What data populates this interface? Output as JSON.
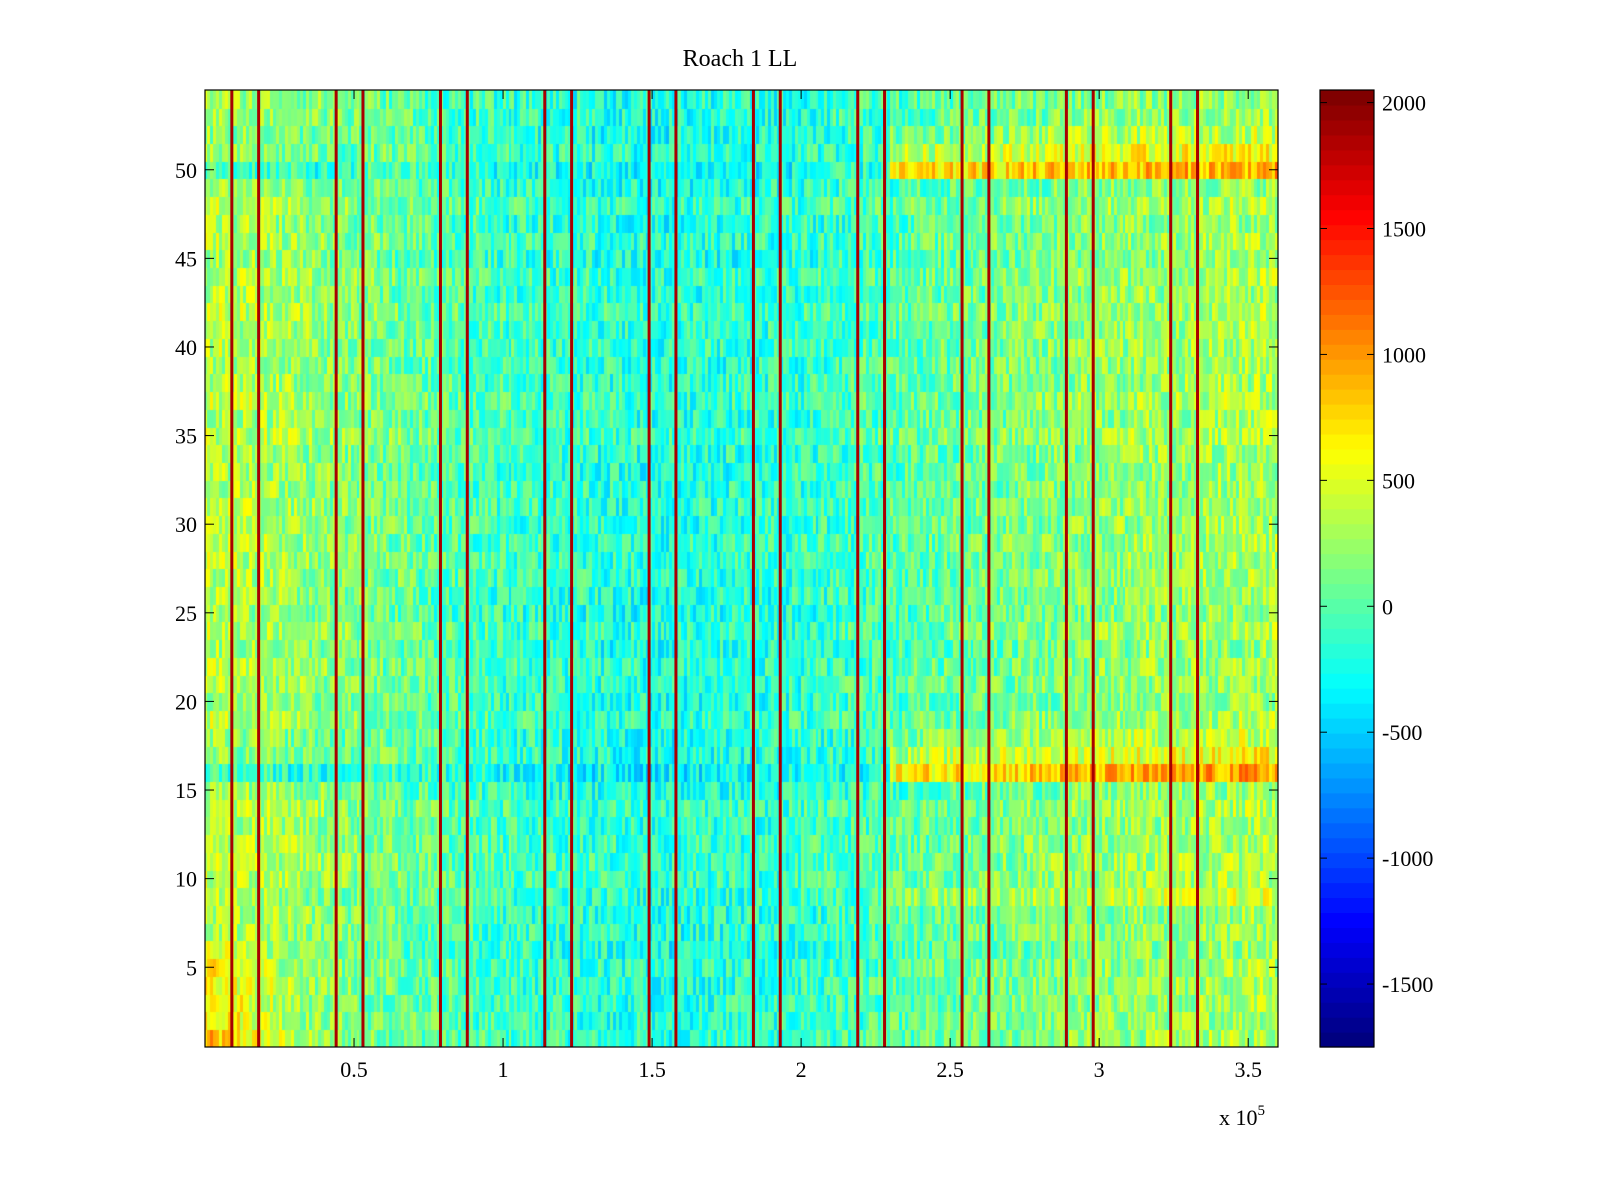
{
  "chart_data": {
    "type": "heatmap",
    "title": "Roach 1 LL",
    "xlabel": "",
    "ylabel": "",
    "x_multiplier_label": "x 10",
    "x_multiplier_exponent": "5",
    "xlim": [
      0,
      3.6
    ],
    "ylim": [
      0.5,
      54.5
    ],
    "rows": 54,
    "columns": 360,
    "x_ticks": [
      {
        "value": 0.5,
        "label": "0.5"
      },
      {
        "value": 1,
        "label": "1"
      },
      {
        "value": 1.5,
        "label": "1.5"
      },
      {
        "value": 2,
        "label": "2"
      },
      {
        "value": 2.5,
        "label": "2.5"
      },
      {
        "value": 3,
        "label": "3"
      },
      {
        "value": 3.5,
        "label": "3.5"
      }
    ],
    "y_ticks": [
      {
        "value": 5,
        "label": "5"
      },
      {
        "value": 10,
        "label": "10"
      },
      {
        "value": 15,
        "label": "15"
      },
      {
        "value": 20,
        "label": "20"
      },
      {
        "value": 25,
        "label": "25"
      },
      {
        "value": 30,
        "label": "30"
      },
      {
        "value": 35,
        "label": "35"
      },
      {
        "value": 40,
        "label": "40"
      },
      {
        "value": 45,
        "label": "45"
      },
      {
        "value": 50,
        "label": "50"
      }
    ],
    "colorbar": {
      "colormap": "jet",
      "min": -1750,
      "max": 2050,
      "ticks": [
        {
          "value": 2000,
          "label": "2000"
        },
        {
          "value": 1500,
          "label": "1500"
        },
        {
          "value": 1000,
          "label": "1000"
        },
        {
          "value": 500,
          "label": "500"
        },
        {
          "value": 0,
          "label": "0"
        },
        {
          "value": -500,
          "label": "-500"
        },
        {
          "value": -1000,
          "label": "-1000"
        },
        {
          "value": -1500,
          "label": "-1500"
        }
      ]
    },
    "vertical_stripes_x": [
      0.09,
      0.18,
      0.44,
      0.53,
      0.79,
      0.88,
      1.14,
      1.23,
      1.49,
      1.58,
      1.84,
      1.93,
      2.19,
      2.28,
      2.54,
      2.63,
      2.89,
      2.98,
      3.24,
      3.33
    ],
    "stripe_value": 1900,
    "baseline_profile_x": [
      0,
      0.2,
      0.5,
      1.0,
      1.5,
      2.0,
      2.5,
      3.0,
      3.6
    ],
    "baseline_profile_value": [
      350,
      300,
      150,
      -100,
      -200,
      -150,
      50,
      200,
      300
    ],
    "bright_rows": [
      {
        "row": 16,
        "extra": 700
      },
      {
        "row": 17,
        "extra": 300
      },
      {
        "row": 18,
        "extra": 150
      },
      {
        "row": 50,
        "extra": 650
      },
      {
        "row": 51,
        "extra": 300
      },
      {
        "row": 52,
        "extra": 150
      },
      {
        "row": 9,
        "extra": 150
      }
    ],
    "low_left_boost_rows": [
      1,
      2,
      3,
      4,
      5,
      6
    ],
    "low_left_boost_value": 500
  }
}
